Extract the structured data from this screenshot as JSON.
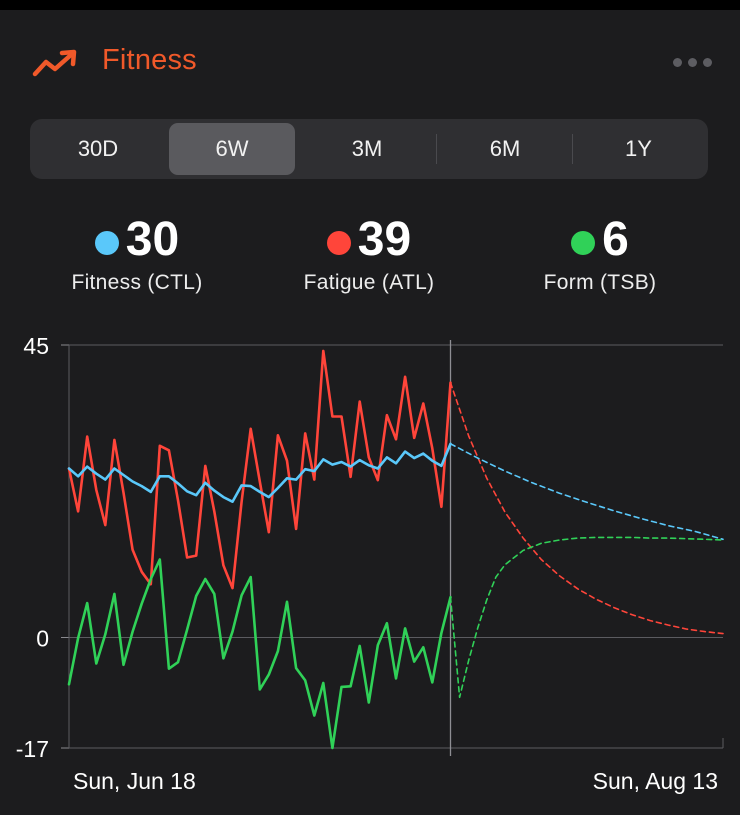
{
  "header": {
    "title": "Fitness",
    "icon": "trend-up-icon",
    "menu_icon": "more-icon",
    "accent_color": "#f0592a"
  },
  "range_tabs": [
    {
      "label": "30D",
      "active": false
    },
    {
      "label": "6W",
      "active": true
    },
    {
      "label": "3M",
      "active": false
    },
    {
      "label": "6M",
      "active": false
    },
    {
      "label": "1Y",
      "active": false
    }
  ],
  "stats": [
    {
      "value": "30",
      "label": "Fitness (CTL)",
      "color": "#5ac8fa"
    },
    {
      "value": "39",
      "label": "Fatigue (ATL)",
      "color": "#ff453a"
    },
    {
      "value": "6",
      "label": "Form (TSB)",
      "color": "#30d158"
    }
  ],
  "chart_data": {
    "type": "line",
    "title": "",
    "xlabel": "",
    "ylabel": "",
    "ylim": [
      -17,
      45
    ],
    "y_ticks": [
      45,
      0,
      -17
    ],
    "x_tick_labels": [
      "Sun, Jun 18",
      "Sun, Aug 13"
    ],
    "x_range": [
      0,
      72
    ],
    "today_index": 42,
    "series": [
      {
        "name": "Fitness (CTL)",
        "color": "#5ac8fa",
        "x": [
          0,
          1,
          2,
          3,
          4,
          5,
          6,
          7,
          8,
          9,
          10,
          11,
          12,
          13,
          14,
          15,
          16,
          17,
          18,
          19,
          20,
          21,
          22,
          23,
          24,
          25,
          26,
          27,
          28,
          29,
          30,
          31,
          32,
          33,
          34,
          35,
          36,
          37,
          38,
          39,
          40,
          41,
          42
        ],
        "values": [
          26.0,
          24.8,
          26.3,
          25.2,
          24.3,
          26.0,
          25.0,
          24.0,
          23.3,
          22.4,
          24.8,
          24.8,
          23.7,
          22.5,
          21.9,
          23.8,
          22.6,
          21.6,
          20.9,
          23.4,
          23.3,
          22.4,
          21.6,
          23.0,
          24.5,
          24.3,
          25.9,
          25.6,
          27.4,
          26.6,
          27.0,
          26.3,
          27.3,
          26.5,
          26.0,
          27.7,
          26.8,
          28.6,
          27.6,
          28.3,
          27.2,
          26.4,
          29.8
        ]
      },
      {
        "name": "Fatigue (ATL)",
        "color": "#ff453a",
        "x": [
          0,
          1,
          2,
          3,
          4,
          5,
          6,
          7,
          8,
          9,
          10,
          11,
          12,
          13,
          14,
          15,
          16,
          17,
          18,
          19,
          20,
          21,
          22,
          23,
          24,
          25,
          26,
          27,
          28,
          29,
          30,
          31,
          32,
          33,
          34,
          35,
          36,
          37,
          38,
          39,
          40,
          41,
          42
        ],
        "values": [
          26.0,
          19.4,
          30.9,
          22.7,
          17.3,
          30.4,
          22.3,
          13.5,
          10.1,
          8.2,
          29.5,
          28.8,
          21.1,
          12.3,
          12.6,
          26.4,
          19.4,
          11.1,
          7.6,
          20.9,
          32.1,
          24.0,
          16.2,
          31.1,
          27.2,
          16.7,
          31.4,
          24.3,
          44.1,
          34.0,
          34.0,
          24.7,
          36.3,
          27.7,
          24.2,
          34.2,
          30.5,
          40.1,
          30.7,
          36.0,
          29.1,
          20.1,
          39.2
        ]
      },
      {
        "name": "Form (TSB)",
        "color": "#30d158",
        "x": [
          0,
          1,
          2,
          3,
          4,
          5,
          6,
          7,
          8,
          9,
          10,
          11,
          12,
          13,
          14,
          15,
          16,
          17,
          18,
          19,
          20,
          21,
          22,
          23,
          24,
          25,
          26,
          27,
          28,
          29,
          30,
          31,
          32,
          33,
          34,
          35,
          36,
          37,
          38,
          39,
          40,
          41,
          42
        ],
        "values": [
          -7.2,
          -0.1,
          5.3,
          -4.0,
          0.5,
          6.7,
          -4.2,
          0.9,
          5.2,
          9.0,
          12.0,
          -4.8,
          -3.8,
          1.2,
          6.4,
          9.0,
          6.7,
          -3.2,
          0.9,
          6.5,
          9.3,
          -8.0,
          -5.7,
          -2.1,
          5.5,
          -4.7,
          -6.6,
          -12.0,
          -7.0,
          -17.0,
          -7.6,
          -7.5,
          -1.3,
          -10.0,
          -1.2,
          2.2,
          -6.3,
          1.4,
          -3.7,
          -1.5,
          -6.9,
          0.7,
          6.2
        ]
      },
      {
        "name": "Fitness (CTL) projection",
        "color": "#5ac8fa",
        "dashed": true,
        "x": [
          42,
          45,
          48,
          51,
          54,
          57,
          60,
          63,
          66,
          69,
          72
        ],
        "values": [
          29.8,
          27.6,
          25.6,
          23.8,
          22.2,
          20.8,
          19.5,
          18.3,
          17.2,
          16.3,
          15.1
        ]
      },
      {
        "name": "Fatigue (ATL) projection",
        "color": "#ff453a",
        "dashed": true,
        "x": [
          42,
          44,
          46,
          48,
          50,
          52,
          54,
          56,
          58,
          60,
          62,
          64,
          66,
          68,
          70,
          72
        ],
        "values": [
          39.2,
          31.0,
          24.5,
          19.3,
          15.3,
          12.0,
          9.5,
          7.5,
          5.9,
          4.6,
          3.5,
          2.6,
          1.9,
          1.3,
          0.9,
          0.6
        ]
      },
      {
        "name": "Form (TSB) projection",
        "color": "#30d158",
        "dashed": true,
        "x": [
          42,
          43,
          44,
          45,
          46,
          47,
          48,
          50,
          52,
          54,
          56,
          58,
          60,
          62,
          64,
          66,
          68,
          70,
          72
        ],
        "values": [
          6.2,
          -9.2,
          -3.5,
          1.5,
          5.8,
          9.3,
          11.2,
          13.4,
          14.5,
          15.0,
          15.3,
          15.4,
          15.4,
          15.4,
          15.3,
          15.3,
          15.2,
          15.1,
          15.0
        ]
      }
    ]
  }
}
